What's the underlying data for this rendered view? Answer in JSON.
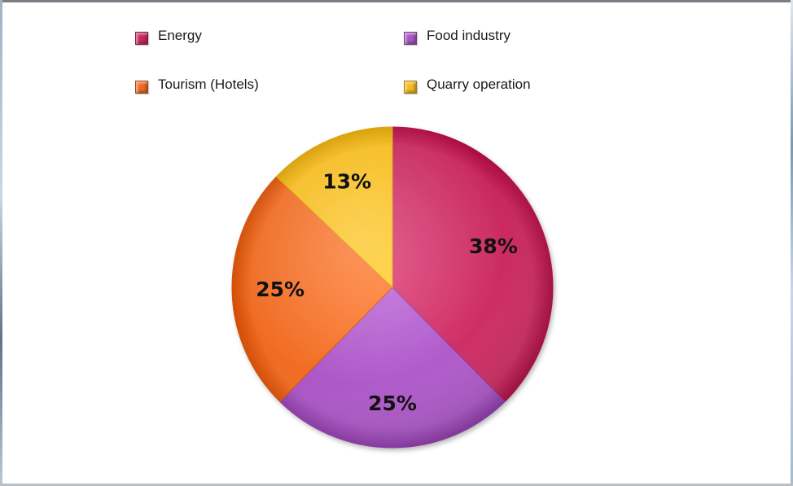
{
  "chart_data": {
    "type": "pie",
    "title": "",
    "slices": [
      {
        "name": "Energy",
        "value": 38,
        "label": "38%",
        "color": "#c8285f"
      },
      {
        "name": "Food industry",
        "value": 25,
        "label": "25%",
        "color": "#a955c4"
      },
      {
        "name": "Tourism (Hotels)",
        "value": 25,
        "label": "25%",
        "color": "#ef6a21"
      },
      {
        "name": "Quarry operation",
        "value": 13,
        "label": "13%",
        "color": "#f5bb1d"
      }
    ],
    "legend_placement": "top",
    "start_angle": "top",
    "direction": "clockwise"
  }
}
